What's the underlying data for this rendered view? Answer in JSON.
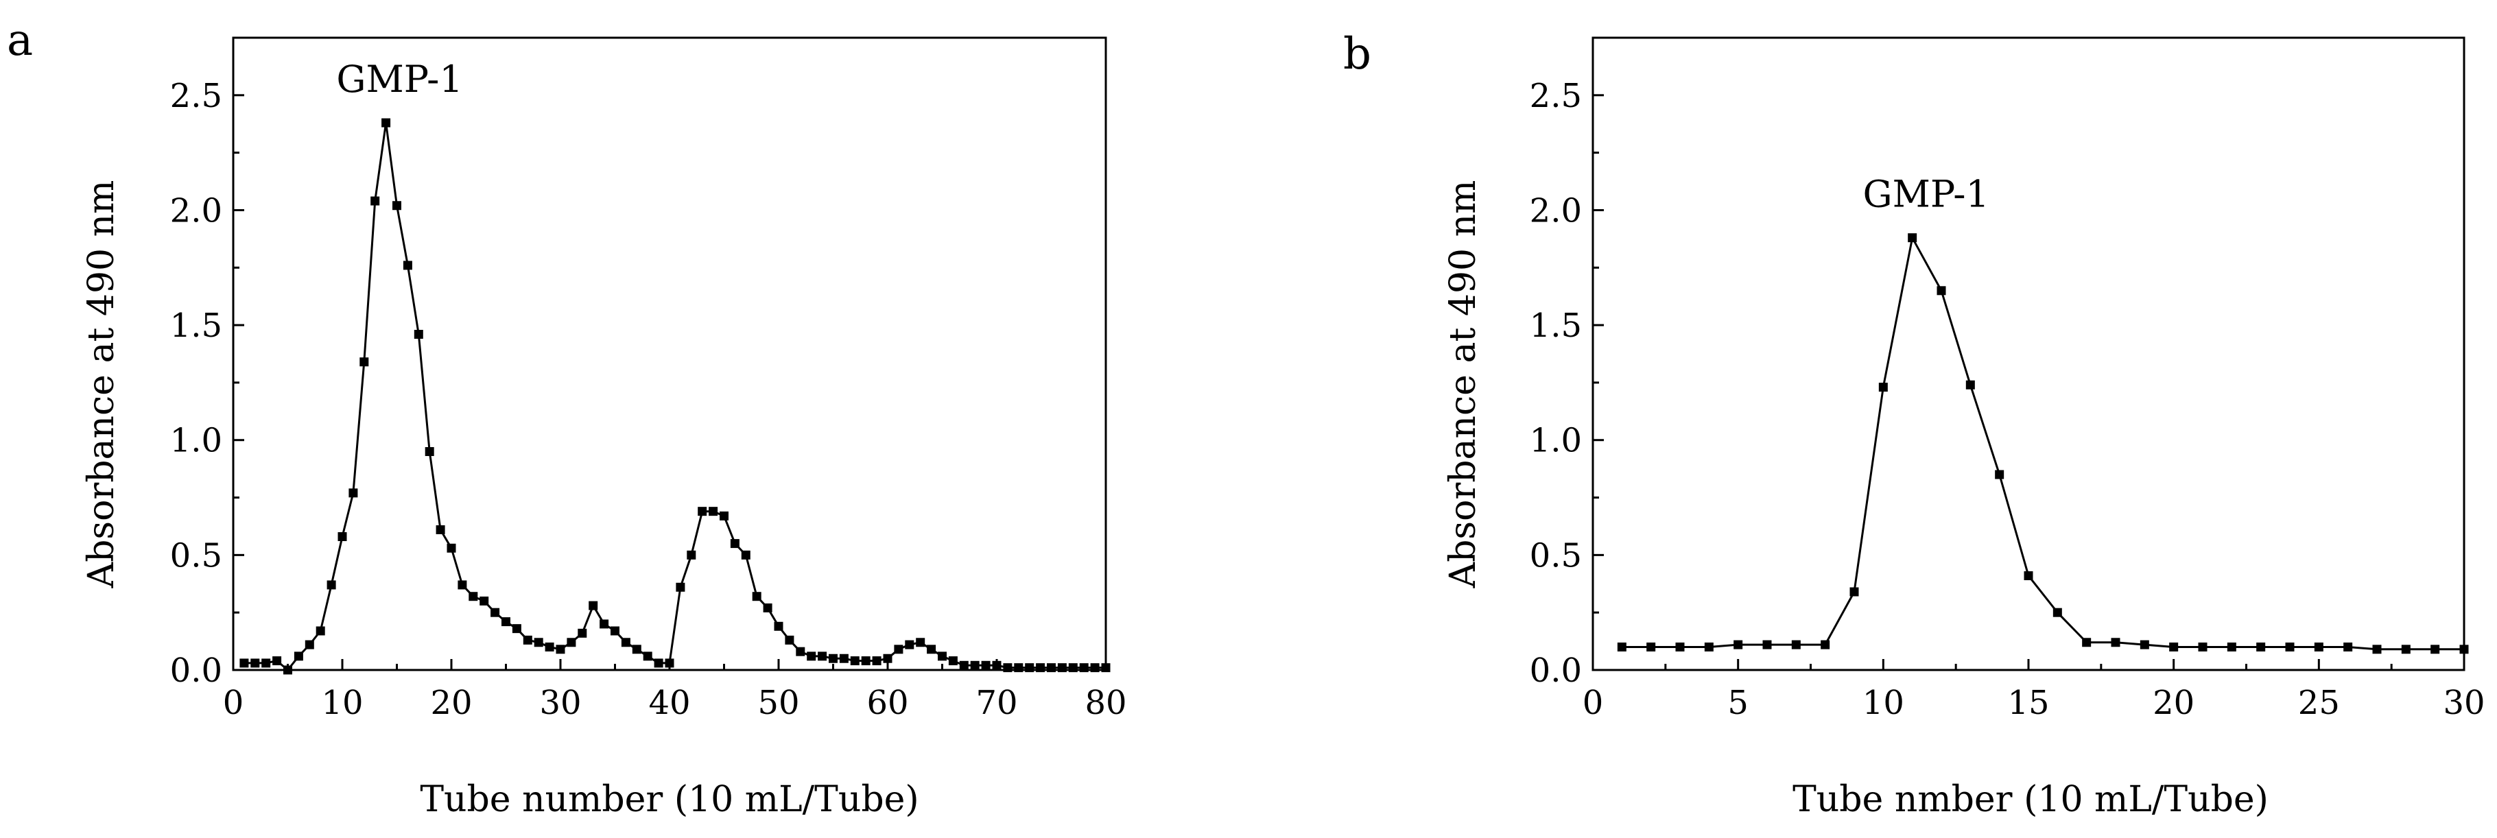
{
  "chart_data": [
    {
      "type": "line",
      "panel_label": "a",
      "xlabel": "Tube number (10 mL/Tube)",
      "ylabel": "Absorbance at 490 nm",
      "xlim": [
        0,
        80
      ],
      "ylim": [
        0,
        2.75
      ],
      "xticks": [
        0,
        10,
        20,
        30,
        40,
        50,
        60,
        70,
        80
      ],
      "yticks": [
        "0.0",
        "0.5",
        "1.0",
        "1.5",
        "2.0",
        "2.5"
      ],
      "grid": false,
      "marker": "square",
      "annotations": [
        {
          "text": "GMP-1",
          "x": 14,
          "y": 2.38
        }
      ],
      "series": [
        {
          "x": [
            1,
            2,
            3,
            4,
            5,
            6,
            7,
            8,
            9,
            10,
            11,
            12,
            13,
            14,
            15,
            16,
            17,
            18,
            19,
            20,
            21,
            22,
            23,
            24,
            25,
            26,
            27,
            28,
            29,
            30,
            31,
            32,
            33,
            34,
            35,
            36,
            37,
            38,
            39,
            40,
            41,
            42,
            43,
            44,
            45,
            46,
            47,
            48,
            49,
            50,
            51,
            52,
            53,
            54,
            55,
            56,
            57,
            58,
            59,
            60,
            61,
            62,
            63,
            64,
            65,
            66,
            67,
            68,
            69,
            70,
            71,
            72,
            73,
            74,
            75,
            76,
            77,
            78,
            79,
            80
          ],
          "y": [
            0.03,
            0.03,
            0.03,
            0.04,
            0.0,
            0.06,
            0.11,
            0.17,
            0.37,
            0.58,
            0.77,
            1.34,
            2.04,
            2.38,
            2.02,
            1.76,
            1.46,
            0.95,
            0.61,
            0.53,
            0.37,
            0.32,
            0.3,
            0.25,
            0.21,
            0.18,
            0.13,
            0.12,
            0.1,
            0.09,
            0.12,
            0.16,
            0.28,
            0.2,
            0.17,
            0.12,
            0.09,
            0.06,
            0.03,
            0.03,
            0.36,
            0.5,
            0.69,
            0.69,
            0.67,
            0.55,
            0.5,
            0.32,
            0.27,
            0.19,
            0.13,
            0.08,
            0.06,
            0.06,
            0.05,
            0.05,
            0.04,
            0.04,
            0.04,
            0.05,
            0.09,
            0.11,
            0.12,
            0.09,
            0.06,
            0.04,
            0.02,
            0.02,
            0.02,
            0.02,
            0.01,
            0.01,
            0.01,
            0.01,
            0.01,
            0.01,
            0.01,
            0.01,
            0.01,
            0.01
          ]
        }
      ]
    },
    {
      "type": "line",
      "panel_label": "b",
      "xlabel": "Tube nmber (10 mL/Tube)",
      "ylabel": "Absorbance at 490 nm",
      "xlim": [
        0,
        30
      ],
      "ylim": [
        0,
        2.75
      ],
      "xticks": [
        0,
        5,
        10,
        15,
        20,
        25,
        30
      ],
      "yticks": [
        "0.0",
        "0.5",
        "1.0",
        "1.5",
        "2.0",
        "2.5"
      ],
      "grid": false,
      "marker": "square",
      "annotations": [
        {
          "text": "GMP-1",
          "x": 11,
          "y": 1.88
        }
      ],
      "series": [
        {
          "x": [
            1,
            2,
            3,
            4,
            5,
            6,
            7,
            8,
            9,
            10,
            11,
            12,
            13,
            14,
            15,
            16,
            17,
            18,
            19,
            20,
            21,
            22,
            23,
            24,
            25,
            26,
            27,
            28,
            29,
            30
          ],
          "y": [
            0.1,
            0.1,
            0.1,
            0.1,
            0.11,
            0.11,
            0.11,
            0.11,
            0.34,
            1.23,
            1.88,
            1.65,
            1.24,
            0.85,
            0.41,
            0.25,
            0.12,
            0.12,
            0.11,
            0.1,
            0.1,
            0.1,
            0.1,
            0.1,
            0.1,
            0.1,
            0.09,
            0.09,
            0.09,
            0.09
          ]
        }
      ]
    }
  ]
}
